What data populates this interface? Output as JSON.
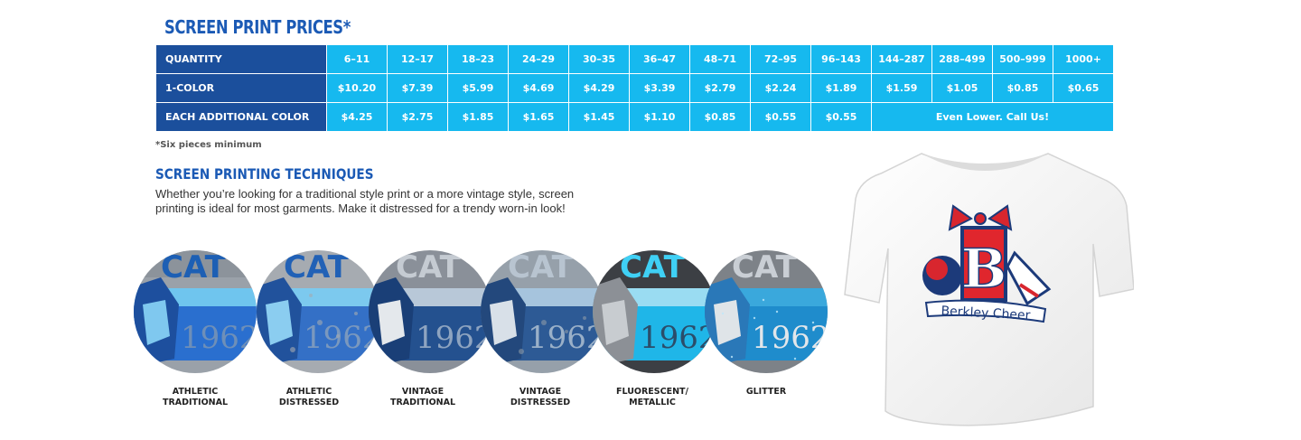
{
  "title": "SCREEN PRINT PRICES*",
  "table": {
    "header_label": "QUANTITY",
    "quantities": [
      "6–11",
      "12–17",
      "18–23",
      "24–29",
      "30–35",
      "36–47",
      "48–71",
      "72–95",
      "96–143",
      "144–287",
      "288–499",
      "500–999",
      "1000+"
    ],
    "rows": [
      {
        "label": "1-COLOR",
        "values": [
          "$10.20",
          "$7.39",
          "$5.99",
          "$4.69",
          "$4.29",
          "$3.39",
          "$2.79",
          "$2.24",
          "$1.89",
          "$1.59",
          "$1.05",
          "$0.85",
          "$0.65"
        ]
      },
      {
        "label": "EACH ADDITIONAL COLOR",
        "values": [
          "$4.25",
          "$2.75",
          "$1.85",
          "$1.65",
          "$1.45",
          "$1.10",
          "$0.85",
          "$0.55",
          "$0.55"
        ],
        "merged_text": "Even Lower. Call Us!"
      }
    ]
  },
  "footnote": "*Six pieces minimum",
  "techniques": {
    "title": "SCREEN PRINTING TECHNIQUES",
    "description": "Whether you’re looking for a traditional style print or a more vintage style, screen printing is ideal for most garments. Make it distressed for a trendy worn-in look!",
    "items": [
      {
        "line1": "ATHLETIC",
        "line2": "TRADITIONAL"
      },
      {
        "line1": "ATHLETIC",
        "line2": "DISTRESSED"
      },
      {
        "line1": "VINTAGE",
        "line2": "TRADITIONAL"
      },
      {
        "line1": "VINTAGE",
        "line2": "DISTRESSED"
      },
      {
        "line1": "FLUORESCENT/",
        "line2": "METALLIC"
      },
      {
        "line1": "GLITTER",
        "line2": ""
      }
    ],
    "sample_text": {
      "top": "CAT",
      "year": "1962"
    }
  },
  "shirt": {
    "letter": "B",
    "text": "Berkley Cheer"
  },
  "colors": {
    "navy": "#1b4f9c",
    "cyan": "#16b9ef",
    "title_blue": "#1b5ab5",
    "red": "#e0262d"
  }
}
